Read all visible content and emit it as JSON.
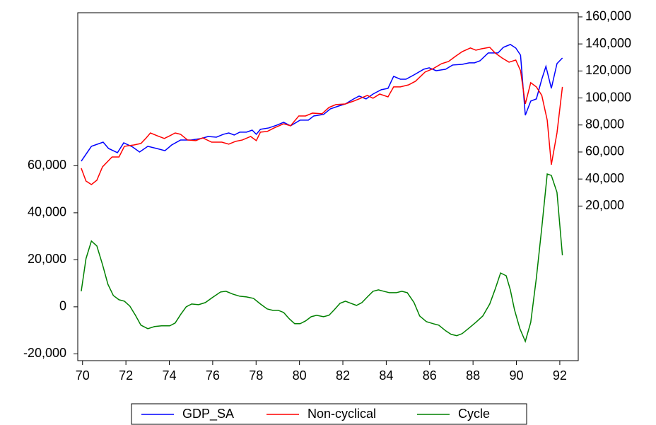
{
  "chart_data": {
    "type": "line",
    "xlim": [
      69.78,
      92.85
    ],
    "xticks": [
      70,
      72,
      74,
      76,
      78,
      80,
      82,
      84,
      86,
      88,
      90,
      92
    ],
    "ylim": [
      -22900,
      125100
    ],
    "yticks": [
      {
        "value": -20000,
        "label": "-20,000"
      },
      0,
      {
        "value": 20000,
        "label": "20,000"
      },
      {
        "value": 40000,
        "label": "40,000"
      },
      {
        "value": 60000,
        "label": "60,000"
      }
    ],
    "y2lim": [
      -94450,
      163100
    ],
    "y2ticks": [
      {
        "value": 20000,
        "label": "20,000"
      },
      {
        "value": 40000,
        "label": "40,000"
      },
      {
        "value": 60000,
        "label": "60,000"
      },
      {
        "value": 80000,
        "label": "80,000"
      },
      {
        "value": 100000,
        "label": "100,000"
      },
      {
        "value": 120000,
        "label": "120,000"
      },
      {
        "value": 140000,
        "label": "140,000"
      },
      {
        "value": 160000,
        "label": "160,000"
      }
    ],
    "grid": false,
    "legend": "bottom",
    "series": [
      {
        "name": "GDP_SA",
        "color": "#0000ff",
        "axis": "y2",
        "x": [
          69.94,
          70.41,
          70.95,
          71.2,
          71.61,
          71.9,
          72.31,
          72.63,
          73.01,
          73.42,
          73.8,
          74.11,
          74.52,
          75.0,
          75.47,
          75.79,
          76.17,
          76.49,
          76.74,
          76.99,
          77.25,
          77.56,
          77.82,
          78.01,
          78.2,
          78.58,
          78.96,
          79.27,
          79.59,
          80.03,
          80.41,
          80.66,
          81.11,
          81.42,
          81.8,
          82.12,
          82.5,
          82.75,
          83.07,
          83.39,
          83.77,
          84.08,
          84.34,
          84.65,
          84.91,
          85.28,
          85.73,
          85.98,
          86.3,
          86.74,
          87.06,
          87.5,
          87.82,
          88.07,
          88.32,
          88.7,
          89.15,
          89.4,
          89.72,
          89.97,
          90.19,
          90.41,
          90.66,
          90.92,
          91.17,
          91.36,
          91.61,
          91.87,
          92.12
        ],
        "values": [
          53200,
          64200,
          67300,
          62600,
          59500,
          66800,
          63700,
          60000,
          64200,
          62600,
          61000,
          65200,
          68900,
          68900,
          70000,
          71500,
          71000,
          73100,
          74100,
          72600,
          74700,
          74700,
          76200,
          73100,
          76800,
          77800,
          79900,
          82000,
          79400,
          83600,
          83600,
          86700,
          87800,
          91900,
          94000,
          95600,
          99300,
          101400,
          99300,
          102900,
          106100,
          107100,
          116000,
          113900,
          113900,
          117100,
          121300,
          122300,
          120200,
          121300,
          124400,
          124900,
          126000,
          126000,
          127500,
          133300,
          133300,
          137500,
          139600,
          137000,
          131700,
          87200,
          97700,
          99300,
          113900,
          123400,
          107100,
          125400,
          129600
        ]
      },
      {
        "name": "Non-cyclical",
        "color": "#ff0000",
        "axis": "y2",
        "x": [
          69.94,
          70.16,
          70.41,
          70.66,
          70.92,
          71.36,
          71.68,
          71.93,
          72.37,
          72.69,
          72.94,
          73.13,
          73.45,
          73.77,
          74.02,
          74.27,
          74.52,
          74.84,
          75.22,
          75.54,
          75.95,
          76.42,
          76.74,
          77.06,
          77.37,
          77.75,
          78.01,
          78.2,
          78.51,
          78.83,
          79.27,
          79.59,
          79.97,
          80.28,
          80.6,
          81.04,
          81.36,
          81.68,
          82.12,
          82.5,
          82.82,
          83.13,
          83.39,
          83.7,
          84.08,
          84.34,
          84.65,
          85.03,
          85.35,
          85.79,
          86.17,
          86.55,
          86.87,
          87.18,
          87.5,
          87.88,
          88.13,
          88.39,
          88.77,
          89.02,
          89.34,
          89.66,
          89.97,
          90.19,
          90.41,
          90.66,
          90.92,
          91.17,
          91.42,
          91.61,
          91.87,
          92.12
        ],
        "values": [
          48000,
          38500,
          35900,
          39100,
          49000,
          56300,
          56300,
          64200,
          65200,
          66300,
          70500,
          74100,
          72000,
          70000,
          72000,
          74100,
          73100,
          68900,
          68400,
          70500,
          67300,
          67300,
          65800,
          67900,
          68900,
          71500,
          68400,
          74700,
          75200,
          77800,
          80900,
          79400,
          86700,
          86700,
          88800,
          88300,
          93000,
          95100,
          95600,
          97700,
          99800,
          101900,
          99800,
          102900,
          100800,
          108200,
          108200,
          109700,
          112400,
          119200,
          121800,
          125400,
          127000,
          130700,
          134300,
          137000,
          135400,
          136400,
          137500,
          133300,
          129600,
          126500,
          128100,
          120200,
          95600,
          111300,
          108200,
          101900,
          83600,
          50600,
          74100,
          108200
        ]
      },
      {
        "name": "Cycle",
        "color": "#008000",
        "x": [
          69.94,
          70.16,
          70.41,
          70.66,
          70.92,
          71.17,
          71.42,
          71.68,
          71.93,
          72.18,
          72.44,
          72.69,
          73.01,
          73.32,
          73.64,
          74.02,
          74.27,
          74.52,
          74.78,
          75.03,
          75.35,
          75.66,
          75.98,
          76.36,
          76.61,
          76.93,
          77.25,
          77.56,
          77.88,
          78.2,
          78.51,
          78.77,
          79.02,
          79.27,
          79.53,
          79.78,
          80.03,
          80.28,
          80.54,
          80.79,
          81.11,
          81.36,
          81.61,
          81.87,
          82.12,
          82.37,
          82.63,
          82.88,
          83.13,
          83.39,
          83.64,
          83.89,
          84.15,
          84.46,
          84.72,
          84.97,
          85.28,
          85.54,
          85.85,
          86.17,
          86.42,
          86.74,
          86.99,
          87.25,
          87.5,
          87.82,
          88.13,
          88.45,
          88.77,
          89.02,
          89.27,
          89.53,
          89.72,
          89.91,
          90.16,
          90.41,
          90.66,
          90.92,
          91.17,
          91.42,
          91.61,
          91.87,
          92.12
        ],
        "values": [
          6600,
          20500,
          28000,
          25900,
          18000,
          9600,
          4800,
          3000,
          2400,
          300,
          -3600,
          -7800,
          -9300,
          -8400,
          -8100,
          -8100,
          -6900,
          -3300,
          0,
          1200,
          900,
          1800,
          3900,
          6300,
          6600,
          5400,
          4500,
          4200,
          3600,
          1200,
          -900,
          -1500,
          -1500,
          -2400,
          -5100,
          -7200,
          -7200,
          -6000,
          -4200,
          -3600,
          -4200,
          -3600,
          -1200,
          1500,
          2400,
          1500,
          600,
          1800,
          4200,
          6600,
          7200,
          6600,
          6000,
          6000,
          6600,
          6000,
          1800,
          -3900,
          -6300,
          -7200,
          -7800,
          -10200,
          -11700,
          -12300,
          -11400,
          -9000,
          -6600,
          -3900,
          1200,
          7500,
          14400,
          13200,
          7200,
          -1200,
          -9300,
          -14700,
          -6600,
          12300,
          33700,
          56500,
          55900,
          48700,
          21900
        ]
      }
    ]
  }
}
